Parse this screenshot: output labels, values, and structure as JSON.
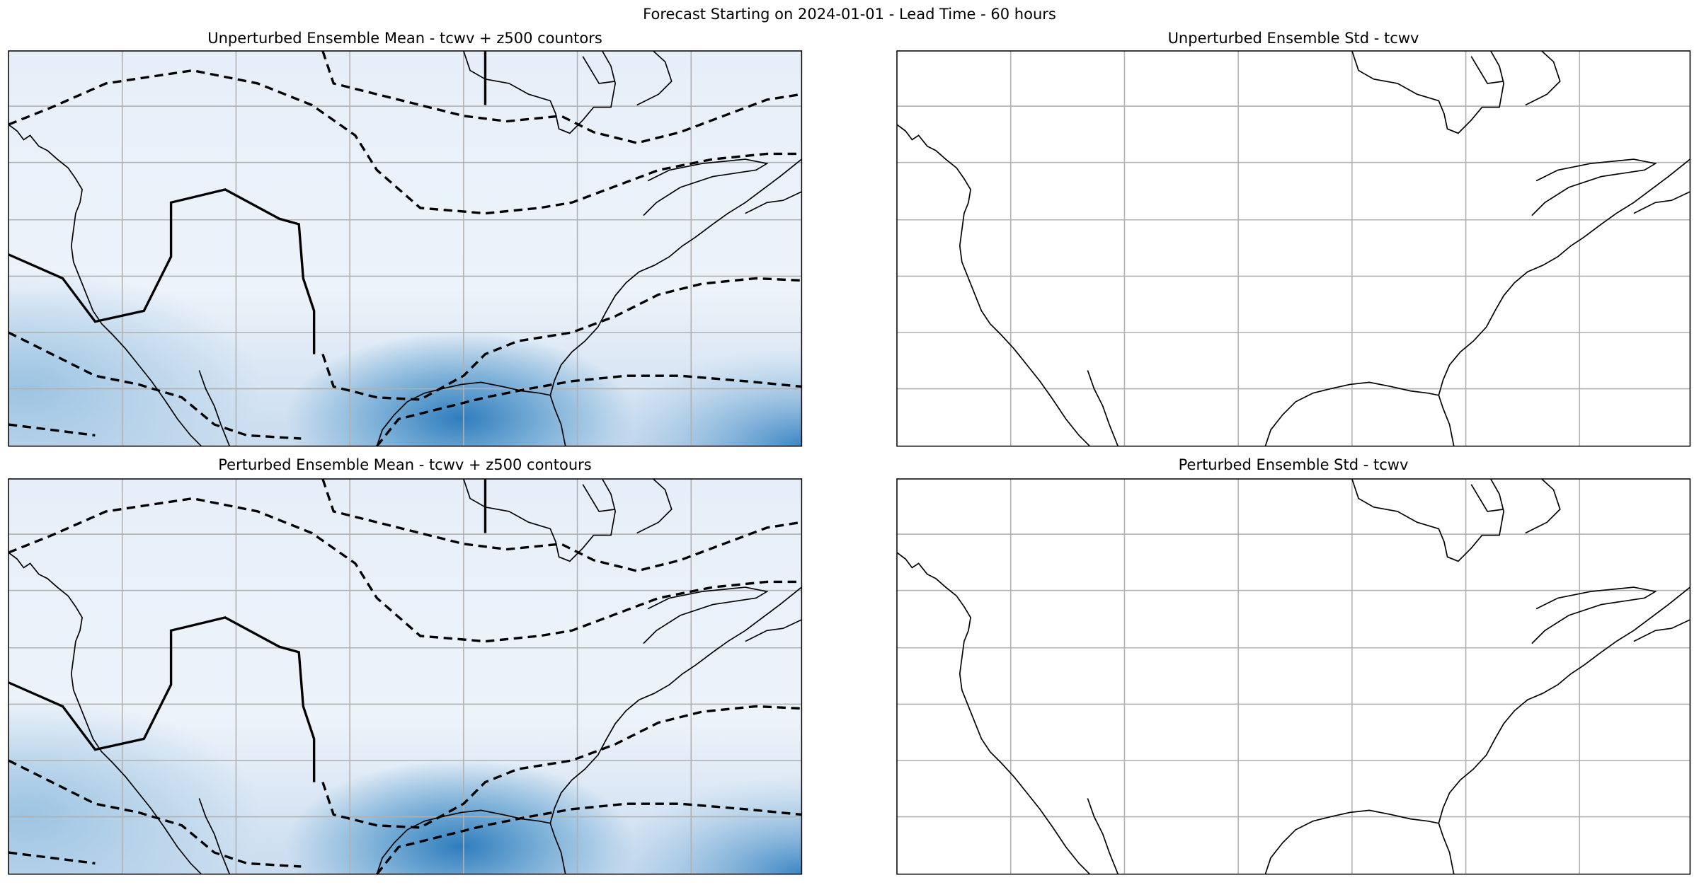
{
  "title": "Forecast Starting on 2024-01-01 - Lead Time - 60 hours",
  "panels": [
    {
      "title": "Unperturbed Ensemble Mean - tcwv + z500 countors"
    },
    {
      "title": "Unperturbed Ensemble Std - tcwv"
    },
    {
      "title": "Perturbed Ensemble Mean - tcwv + z500 contours"
    },
    {
      "title": "Perturbed Ensemble Std - tcwv"
    }
  ]
}
